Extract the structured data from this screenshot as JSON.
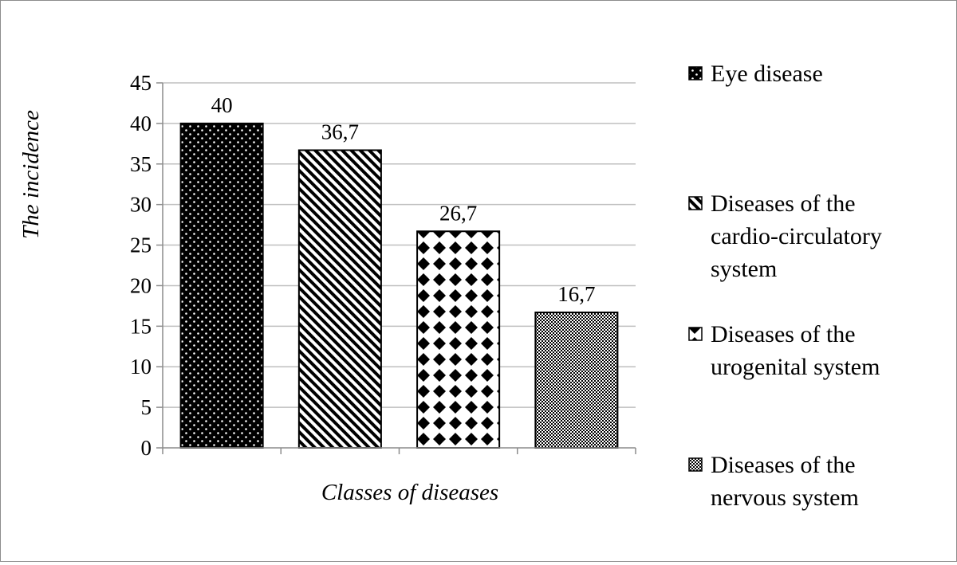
{
  "chart_data": {
    "type": "bar",
    "categories": [
      "Eye disease",
      "Diseases of the cardio-circulatory system",
      "Diseases of the urogenital system",
      "Diseases of the nervous system"
    ],
    "values": [
      40,
      36.7,
      26.7,
      16.7
    ],
    "data_labels": [
      "40",
      "36,7",
      "26,7",
      "16,7"
    ],
    "title": "",
    "xlabel": "Classes of diseases",
    "ylabel": "The incidence",
    "ylim": [
      0,
      45
    ],
    "yticks": [
      0,
      5,
      10,
      15,
      20,
      25,
      30,
      35,
      40,
      45
    ],
    "grid": "horizontal",
    "legend_position": "right",
    "legend": [
      {
        "lines": [
          "Eye disease"
        ],
        "pattern": "dots-on-black"
      },
      {
        "lines": [
          "Diseases of the",
          "cardio-circulatory",
          "system"
        ],
        "pattern": "diagonal-stripes"
      },
      {
        "lines": [
          "Diseases of the",
          "urogenital system"
        ],
        "pattern": "diamond-checker"
      },
      {
        "lines": [
          "Diseases of the",
          "nervous system"
        ],
        "pattern": "fine-checker"
      }
    ],
    "colors": {
      "bar_fill": "#000000",
      "grid": "#bfbfbf",
      "axis": "#8c8c8c"
    }
  }
}
